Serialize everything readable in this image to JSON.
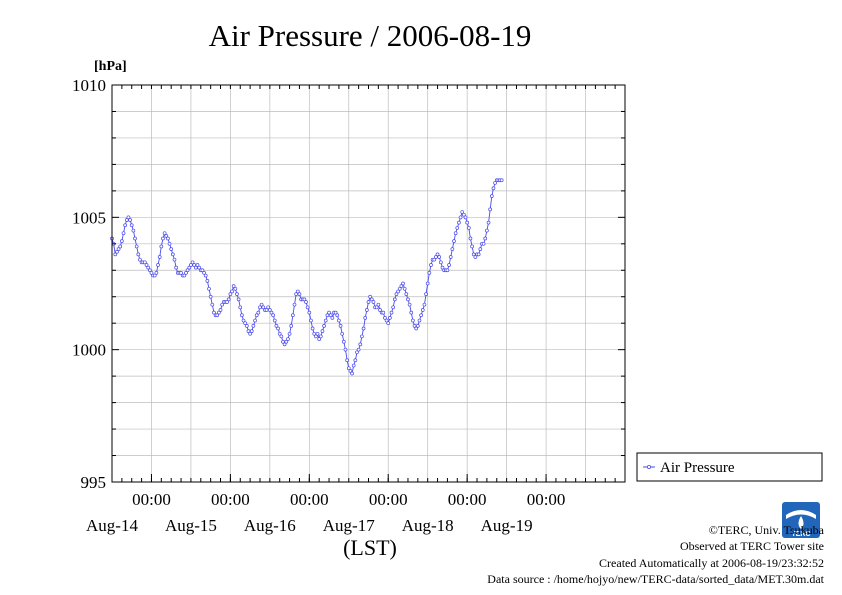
{
  "chart_data": {
    "type": "line",
    "title": "Air Pressure / 2006-08-19",
    "ylabel": "[hPa]",
    "xlabel": "(LST)",
    "ylim": [
      995,
      1010
    ],
    "yticks": [
      "995",
      "1000",
      "1005",
      "1010"
    ],
    "xlim": [
      "2006-08-13T12:00",
      "2006-08-19T24:00"
    ],
    "xticks": [
      {
        "time": "2006-08-14T00:00",
        "label": "00:00",
        "date": "Aug-14"
      },
      {
        "time": "2006-08-15T00:00",
        "label": "00:00",
        "date": "Aug-15"
      },
      {
        "time": "2006-08-16T00:00",
        "label": "00:00",
        "date": "Aug-16"
      },
      {
        "time": "2006-08-17T00:00",
        "label": "00:00",
        "date": "Aug-17"
      },
      {
        "time": "2006-08-18T00:00",
        "label": "00:00",
        "date": "Aug-18"
      },
      {
        "time": "2006-08-19T00:00",
        "label": "00:00",
        "date": "Aug-19"
      }
    ],
    "grid": true,
    "legend_position": "right",
    "series": [
      {
        "name": "Air Pressure",
        "color": "#4a4aee",
        "interval_hours": 0.5,
        "start": "2006-08-13T12:00",
        "values": [
          1004.2,
          1004.0,
          1003.6,
          1003.7,
          1003.8,
          1003.9,
          1004.1,
          1004.4,
          1004.7,
          1004.9,
          1005.0,
          1004.9,
          1004.7,
          1004.5,
          1004.2,
          1003.9,
          1003.6,
          1003.4,
          1003.3,
          1003.3,
          1003.3,
          1003.2,
          1003.1,
          1003.0,
          1002.9,
          1002.8,
          1002.8,
          1002.9,
          1003.2,
          1003.5,
          1003.9,
          1004.2,
          1004.4,
          1004.3,
          1004.2,
          1004.0,
          1003.8,
          1003.6,
          1003.4,
          1003.1,
          1002.9,
          1002.9,
          1002.9,
          1002.8,
          1002.8,
          1002.9,
          1003.0,
          1003.1,
          1003.2,
          1003.3,
          1003.2,
          1003.1,
          1003.2,
          1003.1,
          1003.0,
          1003.0,
          1002.9,
          1002.8,
          1002.6,
          1002.3,
          1002.0,
          1001.7,
          1001.4,
          1001.3,
          1001.3,
          1001.4,
          1001.5,
          1001.7,
          1001.8,
          1001.8,
          1001.8,
          1001.9,
          1002.1,
          1002.2,
          1002.4,
          1002.3,
          1002.1,
          1001.9,
          1001.6,
          1001.3,
          1001.1,
          1001.0,
          1000.9,
          1000.7,
          1000.6,
          1000.7,
          1000.9,
          1001.1,
          1001.3,
          1001.4,
          1001.6,
          1001.7,
          1001.6,
          1001.5,
          1001.5,
          1001.6,
          1001.5,
          1001.4,
          1001.3,
          1001.1,
          1000.9,
          1000.8,
          1000.6,
          1000.5,
          1000.3,
          1000.2,
          1000.3,
          1000.4,
          1000.6,
          1000.9,
          1001.3,
          1001.7,
          1002.1,
          1002.2,
          1002.1,
          1001.9,
          1001.9,
          1001.9,
          1001.8,
          1001.6,
          1001.4,
          1001.1,
          1000.8,
          1000.6,
          1000.5,
          1000.6,
          1000.4,
          1000.5,
          1000.7,
          1000.9,
          1001.1,
          1001.3,
          1001.4,
          1001.3,
          1001.2,
          1001.4,
          1001.4,
          1001.3,
          1001.1,
          1000.9,
          1000.6,
          1000.3,
          1000.0,
          999.6,
          999.3,
          999.2,
          999.1,
          999.4,
          999.6,
          999.9,
          1000.0,
          1000.2,
          1000.5,
          1000.8,
          1001.2,
          1001.5,
          1001.8,
          1002.0,
          1001.9,
          1001.8,
          1001.6,
          1001.6,
          1001.7,
          1001.5,
          1001.4,
          1001.4,
          1001.2,
          1001.1,
          1001.0,
          1001.2,
          1001.4,
          1001.6,
          1001.9,
          1002.1,
          1002.2,
          1002.3,
          1002.4,
          1002.5,
          1002.3,
          1002.1,
          1001.9,
          1001.7,
          1001.4,
          1001.1,
          1000.9,
          1000.8,
          1000.9,
          1001.1,
          1001.3,
          1001.5,
          1001.7,
          1002.1,
          1002.5,
          1002.9,
          1003.2,
          1003.4,
          1003.4,
          1003.5,
          1003.6,
          1003.5,
          1003.3,
          1003.1,
          1003.0,
          1003.0,
          1003.0,
          1003.2,
          1003.5,
          1003.8,
          1004.1,
          1004.4,
          1004.6,
          1004.8,
          1005.0,
          1005.2,
          1005.1,
          1005.0,
          1004.8,
          1004.6,
          1004.2,
          1003.9,
          1003.6,
          1003.5,
          1003.6,
          1003.6,
          1003.8,
          1004.0,
          1004.0,
          1004.2,
          1004.5,
          1004.8,
          1005.3,
          1005.8,
          1006.1,
          1006.3,
          1006.4,
          1006.4,
          1006.4,
          1006.4
        ]
      }
    ]
  },
  "credits": {
    "copyright": "©TERC, Univ. Tsukuba",
    "site": "Observed at TERC Tower site",
    "created": "Created Automatically at 2006-08-19/23:32:52",
    "source": "Data source : /home/hojyo/new/TERC-data/sorted_data/MET.30m.dat"
  },
  "logo": {
    "text": "TERC",
    "color": "#2266bb"
  }
}
